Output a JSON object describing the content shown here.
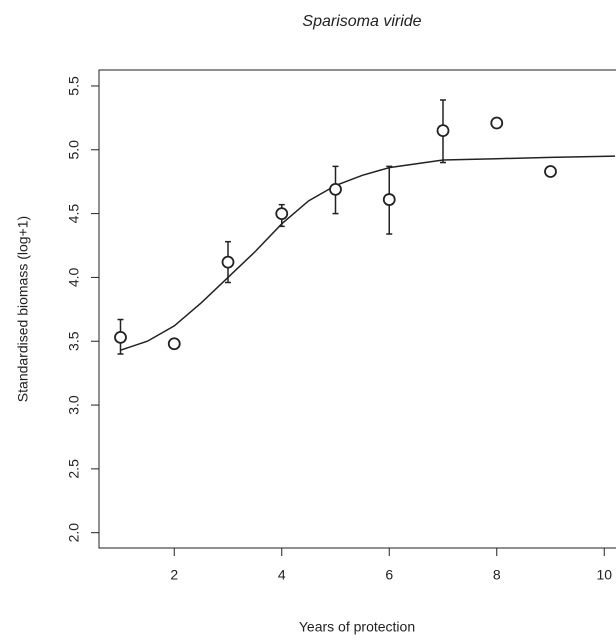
{
  "chart_data": {
    "type": "scatter",
    "title": "Sparisoma viride",
    "x_label": "Years of protection",
    "y_label": "Standardised biomass (log+1)",
    "x": [
      1,
      2,
      3,
      4,
      5,
      6,
      7,
      8,
      9
    ],
    "values": [
      3.53,
      3.48,
      4.12,
      4.5,
      4.69,
      4.61,
      5.15,
      5.21,
      4.83
    ],
    "lower": [
      3.4,
      null,
      3.96,
      4.4,
      4.5,
      4.34,
      4.9,
      null,
      null
    ],
    "upper": [
      3.67,
      null,
      4.28,
      4.57,
      4.87,
      4.87,
      5.39,
      null,
      null
    ],
    "fit": {
      "x": [
        1,
        1.5,
        2,
        2.5,
        3,
        3.5,
        4,
        4.5,
        5,
        5.5,
        6,
        7,
        8,
        9,
        10.2
      ],
      "values": [
        3.43,
        3.5,
        3.62,
        3.8,
        4.0,
        4.2,
        4.42,
        4.6,
        4.72,
        4.8,
        4.86,
        4.92,
        4.93,
        4.94,
        4.95
      ]
    },
    "color": "#222222",
    "xlim": [
      0.6,
      10.2
    ],
    "ylim": [
      1.88,
      5.625
    ],
    "xticks": [
      2,
      4,
      6,
      8,
      10
    ],
    "yticks": [
      {
        "value": 2,
        "label": "2.0"
      },
      {
        "value": 2.5,
        "label": "2.5"
      },
      {
        "value": 3,
        "label": "3.0"
      },
      {
        "value": 3.5,
        "label": "3.5"
      },
      {
        "value": 4,
        "label": "4.0"
      },
      {
        "value": 4.5,
        "label": "4.5"
      },
      {
        "value": 5,
        "label": "5.0"
      },
      {
        "value": 5.5,
        "label": "5.5"
      }
    ]
  }
}
